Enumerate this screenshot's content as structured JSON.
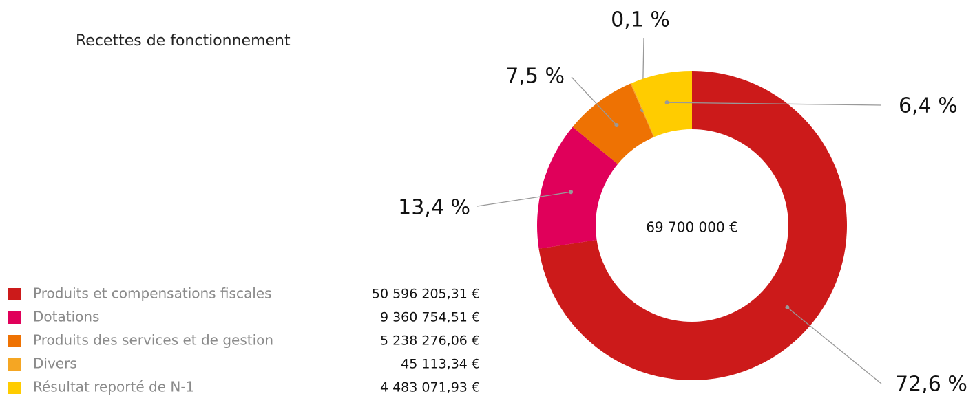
{
  "chart_data": {
    "type": "pie",
    "donut": true,
    "title": "Recettes de fonctionnement",
    "categories": [
      "Produits et compensations fiscales",
      "Dotations",
      "Produits des services et de gestion",
      "Divers",
      "Résultat reporté de N-1"
    ],
    "values": [
      72.6,
      13.4,
      7.5,
      0.1,
      6.4
    ],
    "value_labels": [
      "72,6 %",
      "13,4 %",
      "7,5 %",
      "0,1 %",
      "6,4 %"
    ],
    "colors": [
      "#cc1a1a",
      "#e0005a",
      "#ee7203",
      "#f5a623",
      "#ffcc00"
    ],
    "amounts": [
      50596205.31,
      9360754.51,
      5238276.06,
      45113.34,
      4483071.93
    ],
    "amount_labels": [
      "50 596 205,31 €",
      "9 360 754,51 €",
      "5 238 276,06 €",
      "45 113,34 €",
      "4 483 071,93 €"
    ],
    "total": 69700000,
    "total_label": "69 700 000 €"
  }
}
